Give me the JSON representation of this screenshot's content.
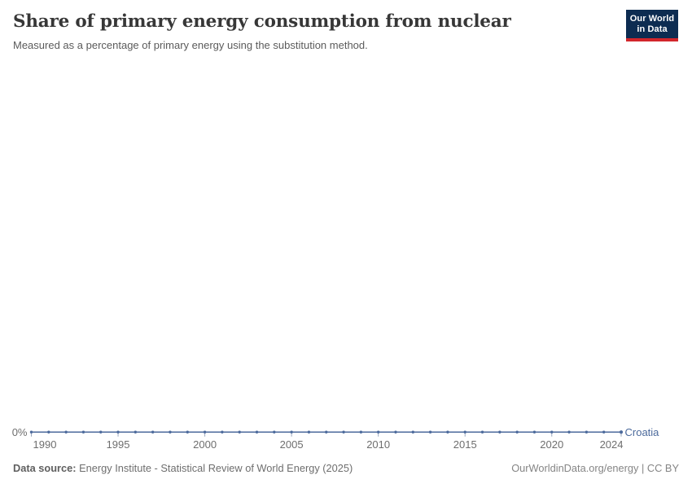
{
  "header": {
    "title": "Share of primary energy consumption from nuclear",
    "subtitle": "Measured as a percentage of primary energy using the substitution method.",
    "logo": {
      "line1": "Our World",
      "line2": "in Data"
    }
  },
  "chart_data": {
    "type": "line",
    "title": "Share of primary energy consumption from nuclear",
    "xlabel": "",
    "ylabel": "",
    "x": [
      1990,
      1991,
      1992,
      1993,
      1994,
      1995,
      1996,
      1997,
      1998,
      1999,
      2000,
      2001,
      2002,
      2003,
      2004,
      2005,
      2006,
      2007,
      2008,
      2009,
      2010,
      2011,
      2012,
      2013,
      2014,
      2015,
      2016,
      2017,
      2018,
      2019,
      2020,
      2021,
      2022,
      2023,
      2024
    ],
    "series": [
      {
        "name": "Croatia",
        "values": [
          0,
          0,
          0,
          0,
          0,
          0,
          0,
          0,
          0,
          0,
          0,
          0,
          0,
          0,
          0,
          0,
          0,
          0,
          0,
          0,
          0,
          0,
          0,
          0,
          0,
          0,
          0,
          0,
          0,
          0,
          0,
          0,
          0,
          0,
          0
        ]
      }
    ],
    "x_ticks": [
      1990,
      1995,
      2000,
      2005,
      2010,
      2015,
      2020,
      2024
    ],
    "y_tick_labels": [
      "0%"
    ],
    "ylim": [
      0,
      100
    ],
    "grid": false,
    "legend_position": "end-of-line",
    "line_color": "#4c6a9c",
    "tick_label_color": "#6e6e6e",
    "tick_mark_color": "#9aa7be"
  },
  "footer": {
    "source_label": "Data source:",
    "source_text": " Energy Institute - Statistical Review of World Energy (2025)",
    "attribution": "OurWorldinData.org/energy | CC BY"
  }
}
